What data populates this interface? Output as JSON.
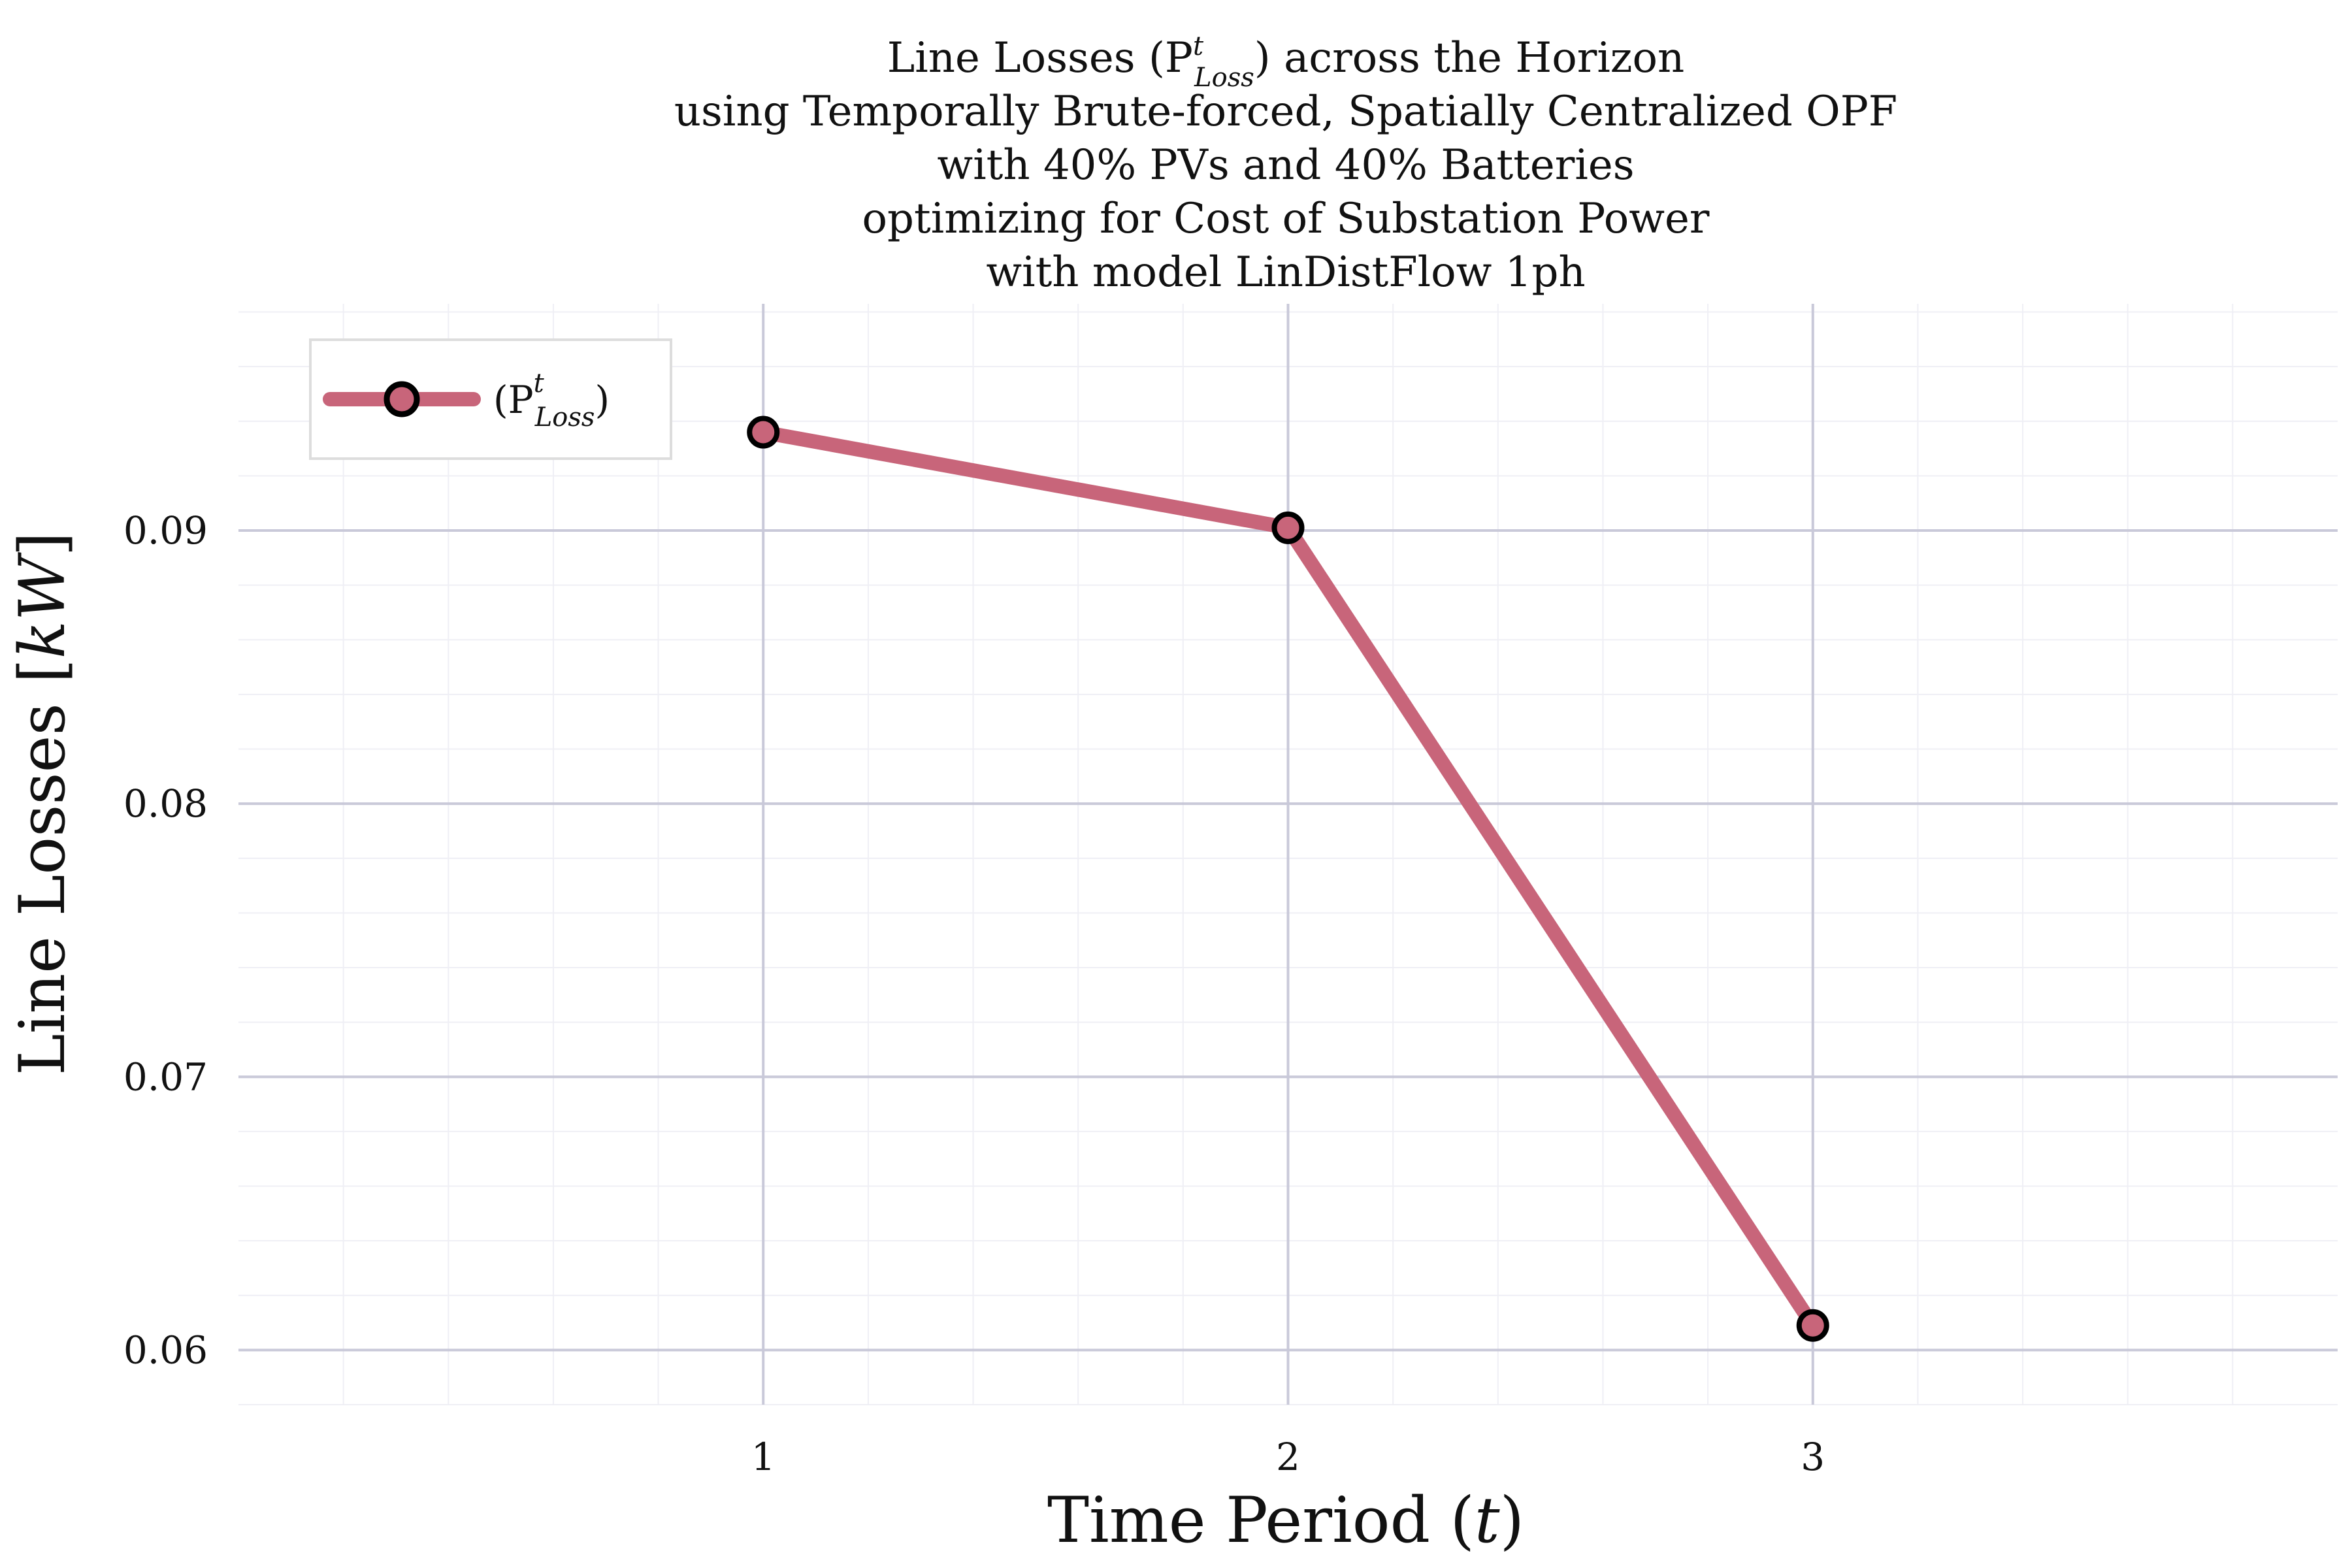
{
  "chart_data": {
    "type": "line",
    "title_lines": [
      "Line Losses (P",
      "using Temporally Brute-forced, Spatially Centralized OPF",
      "with 40% PVs and 40% Batteries",
      "optimizing for Cost of Substation Power",
      "with model LinDistFlow 1ph"
    ],
    "title_line1_suffix": ") across the Horizon",
    "math_sup": "t",
    "math_sub": "Loss",
    "xlabel_main": "Time Period (",
    "xlabel_var": "t",
    "xlabel_close": ")",
    "ylabel_main": "Line Losses [",
    "ylabel_unit": "kW",
    "ylabel_close": "]",
    "x": [
      1,
      2,
      3
    ],
    "x_ticks": [
      "1",
      "2",
      "3"
    ],
    "xlim": [
      0,
      4
    ],
    "y_ticks": [
      "0.06",
      "0.07",
      "0.08",
      "0.09"
    ],
    "ylim": [
      0.058,
      0.0983
    ],
    "grid": true,
    "legend_placement": "top-left",
    "series": [
      {
        "name_prefix": "(P",
        "name_suffix": ")",
        "values": [
          0.0936,
          0.0901,
          0.0609
        ],
        "color": "#c8657a"
      }
    ],
    "colors": {
      "grid_major": "#c9c9d9",
      "grid_minor": "#efeff5",
      "marker_edge": "#000000",
      "legend_border": "#dddddd"
    }
  }
}
